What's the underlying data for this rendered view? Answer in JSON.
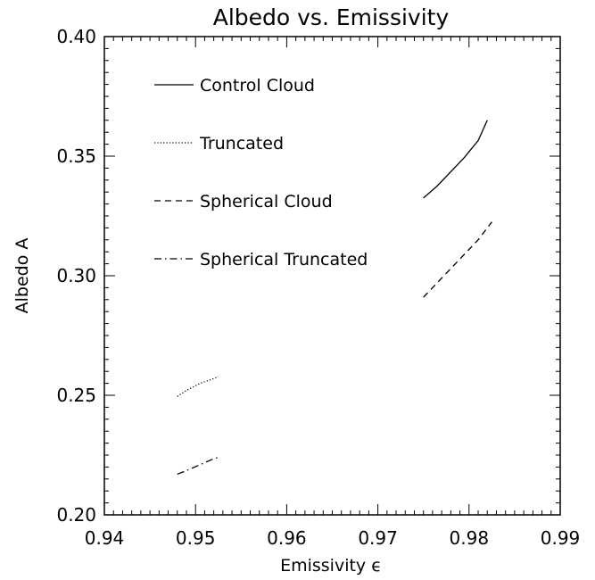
{
  "chart_data": {
    "type": "line",
    "title": "Albedo vs. Emissivity",
    "xlabel": "Emissivity ϵ",
    "ylabel": "Albedo A",
    "xlim": [
      0.94,
      0.99
    ],
    "ylim": [
      0.2,
      0.4
    ],
    "x_ticks": [
      "0.94",
      "0.95",
      "0.96",
      "0.97",
      "0.98",
      "0.99"
    ],
    "y_ticks": [
      "0.20",
      "0.25",
      "0.30",
      "0.35",
      "0.40"
    ],
    "grid": false,
    "legend_position": "top-left",
    "series": [
      {
        "name": "Control Cloud",
        "style": "solid",
        "x": [
          0.975,
          0.9765,
          0.978,
          0.9795,
          0.981,
          0.982
        ],
        "y": [
          0.3325,
          0.3375,
          0.3435,
          0.3495,
          0.3565,
          0.365
        ]
      },
      {
        "name": "Truncated",
        "style": "dotted",
        "x": [
          0.948,
          0.949,
          0.9505,
          0.952,
          0.9525
        ],
        "y": [
          0.2495,
          0.252,
          0.255,
          0.257,
          0.2578
        ]
      },
      {
        "name": "Spherical Cloud",
        "style": "dashed",
        "x": [
          0.975,
          0.9765,
          0.978,
          0.9795,
          0.981,
          0.9825
        ],
        "y": [
          0.291,
          0.297,
          0.303,
          0.309,
          0.315,
          0.3225
        ]
      },
      {
        "name": "Spherical Truncated",
        "style": "dashdot",
        "x": [
          0.948,
          0.949,
          0.9505,
          0.952,
          0.9525
        ],
        "y": [
          0.217,
          0.2185,
          0.221,
          0.2235,
          0.224
        ]
      }
    ]
  }
}
